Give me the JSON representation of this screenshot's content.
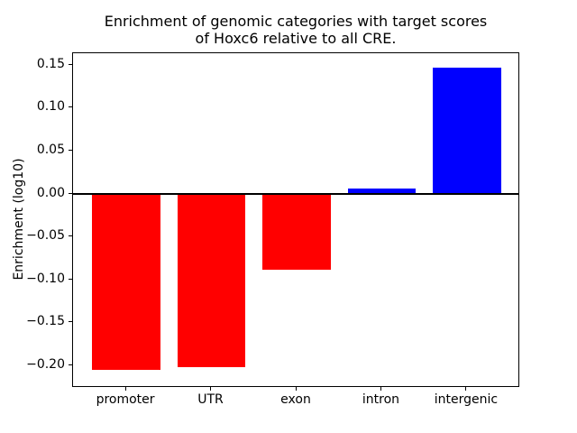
{
  "figure": {
    "background": "#ffffff"
  },
  "chart_data": {
    "type": "bar",
    "title_lines": [
      "Enrichment of genomic categories with target scores",
      "of Hoxc6 relative to all CRE."
    ],
    "ylabel": "Enrichment (log10)",
    "xlabel": "",
    "categories": [
      "promoter",
      "UTR",
      "exon",
      "intron",
      "intergenic"
    ],
    "values": [
      -0.205,
      -0.202,
      -0.088,
      0.006,
      0.147
    ],
    "bar_colors": [
      "#ff0000",
      "#ff0000",
      "#ff0000",
      "#0000ff",
      "#0000ff"
    ],
    "negative_color": "#ff0000",
    "positive_color": "#0000ff",
    "yticks": [
      {
        "v": 0.15,
        "label": "0.15"
      },
      {
        "v": 0.1,
        "label": "0.10"
      },
      {
        "v": 0.05,
        "label": "0.05"
      },
      {
        "v": 0.0,
        "label": "0.00"
      },
      {
        "v": -0.05,
        "label": "−0.05"
      },
      {
        "v": -0.1,
        "label": "−0.10"
      },
      {
        "v": -0.15,
        "label": "−0.15"
      },
      {
        "v": -0.2,
        "label": "−0.20"
      }
    ],
    "ylim": [
      -0.226,
      0.164
    ],
    "xlim": [
      -0.625,
      4.625
    ],
    "bar_width": 0.8,
    "zero_line": {
      "y": 0,
      "color": "#000000"
    },
    "grid": false,
    "legend": null,
    "spine_color": "#000000",
    "text_color": "#000000"
  }
}
